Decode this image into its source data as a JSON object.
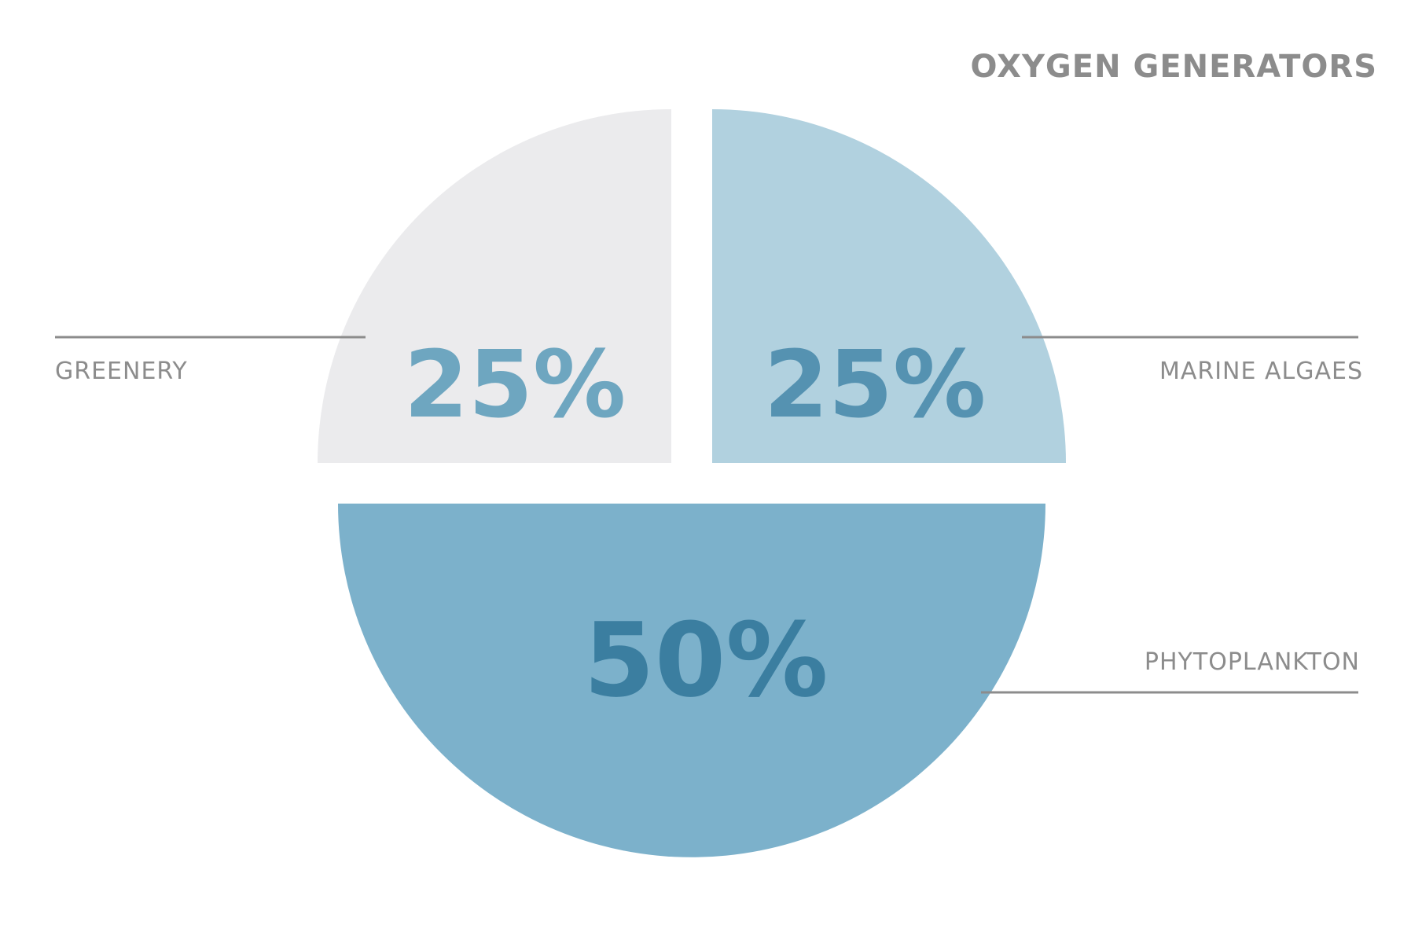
{
  "chart_data": {
    "type": "pie",
    "title": "OXYGEN GENERATORS",
    "slices": [
      {
        "label": "GREENERY",
        "value": 25,
        "value_label": "25%",
        "color": "#ebebed",
        "text_color": "#6ea6c0"
      },
      {
        "label": "MARINE ALGAES",
        "value": 25,
        "value_label": "25%",
        "color": "#b1d1df",
        "text_color": "#5592b1"
      },
      {
        "label": "PHYTOPLANKTON",
        "value": 50,
        "value_label": "50%",
        "color": "#7cb1cb",
        "text_color": "#3b7ea0"
      }
    ],
    "exploded": true,
    "legend": "leader-lines"
  }
}
